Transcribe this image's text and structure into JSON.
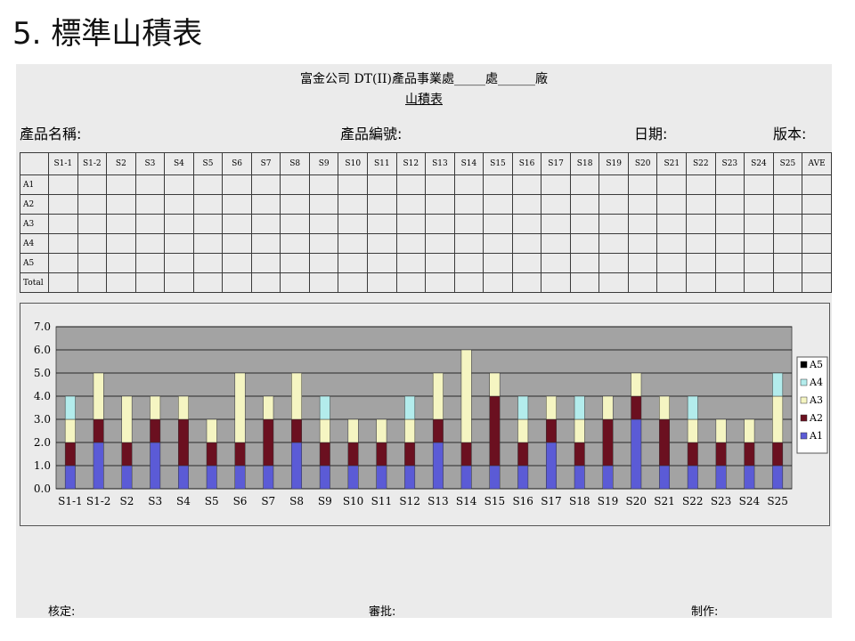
{
  "slide": {
    "title": "5. 標準山積表"
  },
  "form": {
    "header_main": "富金公司 DT(II)產品事業處_____處______廠",
    "header_sub": "山積表",
    "fields": {
      "product_name": "產品名稱:",
      "product_no": "產品編號:",
      "date": "日期:",
      "version": "版本:"
    },
    "table": {
      "columns": [
        "S1-1",
        "S1-2",
        "S2",
        "S3",
        "S4",
        "S5",
        "S6",
        "S7",
        "S8",
        "S9",
        "S10",
        "S11",
        "S12",
        "S13",
        "S14",
        "S15",
        "S16",
        "S17",
        "S18",
        "S19",
        "S20",
        "S21",
        "S22",
        "S23",
        "S24",
        "S25",
        "AVE"
      ],
      "rows": [
        "A1",
        "A2",
        "A3",
        "A4",
        "A5",
        "Total"
      ]
    },
    "signatures": {
      "approve": "核定:",
      "review": "審批:",
      "make": "制作:"
    }
  },
  "chart_data": {
    "type": "bar",
    "stacked": true,
    "categories": [
      "S1-1",
      "S1-2",
      "S2",
      "S3",
      "S4",
      "S5",
      "S6",
      "S7",
      "S8",
      "S9",
      "S10",
      "S11",
      "S12",
      "S13",
      "S14",
      "S15",
      "S16",
      "S17",
      "S18",
      "S19",
      "S20",
      "S21",
      "S22",
      "S23",
      "S24",
      "S25"
    ],
    "series": [
      {
        "name": "A1",
        "color": "#5b5bd6",
        "values": [
          1,
          2,
          1,
          2,
          1,
          1,
          1,
          1,
          2,
          1,
          1,
          1,
          1,
          2,
          1,
          1,
          1,
          2,
          1,
          1,
          3,
          1,
          1,
          1,
          1,
          1
        ]
      },
      {
        "name": "A2",
        "color": "#6b1020",
        "values": [
          1,
          1,
          1,
          1,
          2,
          1,
          1,
          2,
          1,
          1,
          1,
          1,
          1,
          1,
          1,
          3,
          1,
          1,
          1,
          2,
          1,
          2,
          1,
          1,
          1,
          1
        ]
      },
      {
        "name": "A3",
        "color": "#f5f5c2",
        "values": [
          1,
          2,
          2,
          1,
          1,
          1,
          3,
          1,
          2,
          1,
          1,
          1,
          1,
          2,
          4,
          1,
          1,
          1,
          1,
          1,
          1,
          1,
          1,
          1,
          1,
          2
        ]
      },
      {
        "name": "A4",
        "color": "#b3ecec",
        "values": [
          1,
          0,
          0,
          0,
          0,
          0,
          0,
          0,
          0,
          1,
          0,
          0,
          1,
          0,
          0,
          0,
          1,
          0,
          1,
          0,
          0,
          0,
          1,
          0,
          0,
          1
        ]
      },
      {
        "name": "A5",
        "color": "#000000",
        "values": [
          0,
          0,
          0,
          0,
          0,
          0,
          0,
          0,
          0,
          0,
          0,
          0,
          0,
          0,
          0,
          0,
          0,
          0,
          0,
          0,
          0,
          0,
          0,
          0,
          0,
          0
        ]
      }
    ],
    "legend_order": [
      "A5",
      "A4",
      "A3",
      "A2",
      "A1"
    ],
    "ylim": [
      0,
      7
    ],
    "yticks": [
      "0.0",
      "1.0",
      "2.0",
      "3.0",
      "4.0",
      "5.0",
      "6.0",
      "7.0"
    ],
    "legend_position": "right",
    "grid": true,
    "plot_background": "#a3a3a3"
  }
}
